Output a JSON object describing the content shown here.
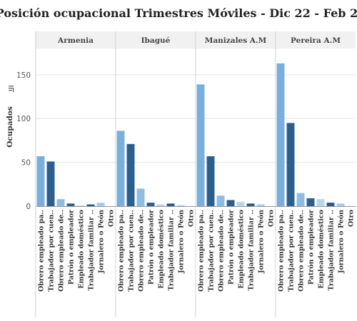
{
  "chart_data": {
    "type": "bar",
    "title": "Posición ocupacional Trimestres Móviles - Dic 22 - Feb 23",
    "ylabel": "Ocupados",
    "ylim": [
      0,
      180
    ],
    "yticks": [
      0,
      50,
      100,
      150
    ],
    "categories": [
      "Obrero empleado pa..",
      "Trabajador por cuen..",
      "Obrero empleado de..",
      "Patrón o empleador",
      "Empleado doméstico",
      "Trabajador familiar ..",
      "Jornalero o Peón",
      "Otro"
    ],
    "bar_colors": [
      "#7aaedc",
      "#2b5f8f",
      "#8fbde2",
      "#2f5f8e",
      "#b9d6ee",
      "#2a5a86",
      "#a6cbea",
      "#9ec4e6"
    ],
    "panels": [
      {
        "name": "Armenia",
        "values": [
          57,
          51,
          8,
          3,
          1,
          2,
          4,
          0
        ]
      },
      {
        "name": "Ibagué",
        "values": [
          86,
          71,
          20,
          4,
          2,
          3,
          1,
          0
        ]
      },
      {
        "name": "Manizales A.M",
        "values": [
          139,
          57,
          12,
          7,
          5,
          3,
          2,
          0
        ]
      },
      {
        "name": "Pereira A.M",
        "values": [
          163,
          95,
          15,
          9,
          8,
          4,
          3,
          0
        ]
      }
    ],
    "grid": "horizontal",
    "legend": "none"
  }
}
